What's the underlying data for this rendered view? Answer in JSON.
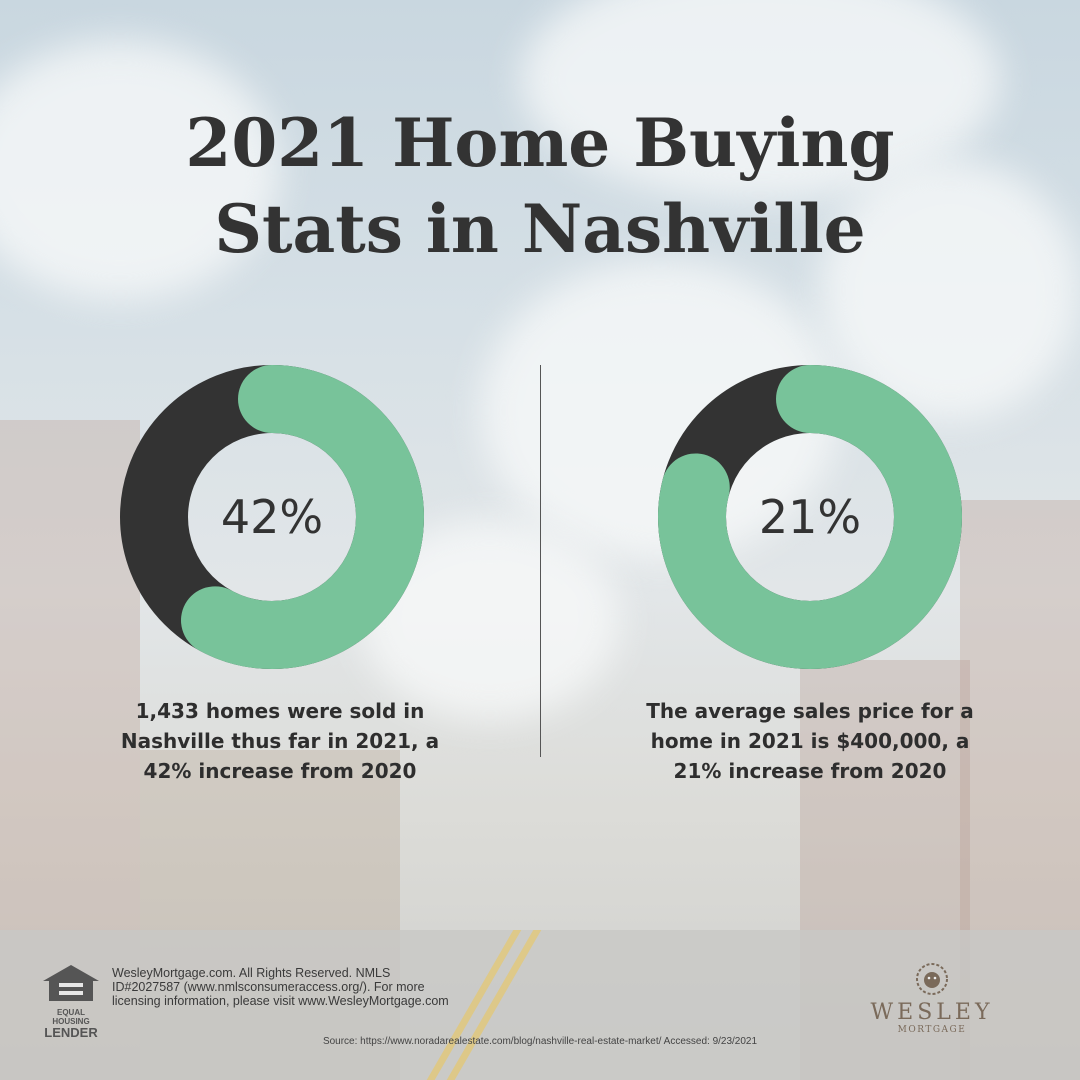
{
  "title_line1": "2021 Home Buying",
  "title_line2": "Stats in Nashville",
  "colors": {
    "filled": "#78c39a",
    "remaining": "#333333",
    "text": "#333333"
  },
  "chart_data": [
    {
      "type": "pie",
      "variant": "donut",
      "value_percent": 42,
      "center_label": "42%",
      "caption": "1,433 homes were sold in Nashville thus far in 2021, a 42% increase from 2020"
    },
    {
      "type": "pie",
      "variant": "donut",
      "value_percent": 21,
      "center_label": "21%",
      "caption": "The average sales price for a home in 2021 is $400,000, a 21% increase from 2020"
    }
  ],
  "footer": {
    "ehl_line1": "EQUAL HOUSING",
    "ehl_line2": "LENDER",
    "legal": "WesleyMortgage.com. All Rights Reserved. NMLS ID#2027587 (www.nmlsconsumeraccess.org/). For more licensing information, please visit www.WesleyMortgage.com",
    "source": "Source: https://www.noradarealestate.com/blog/nashville-real-estate-market/ Accessed: 9/23/2021",
    "logo_name": "WESLEY",
    "logo_sub": "MORTGAGE",
    "ehl_icon": "equal-housing-house-icon",
    "logo_icon": "lion-head-icon"
  }
}
